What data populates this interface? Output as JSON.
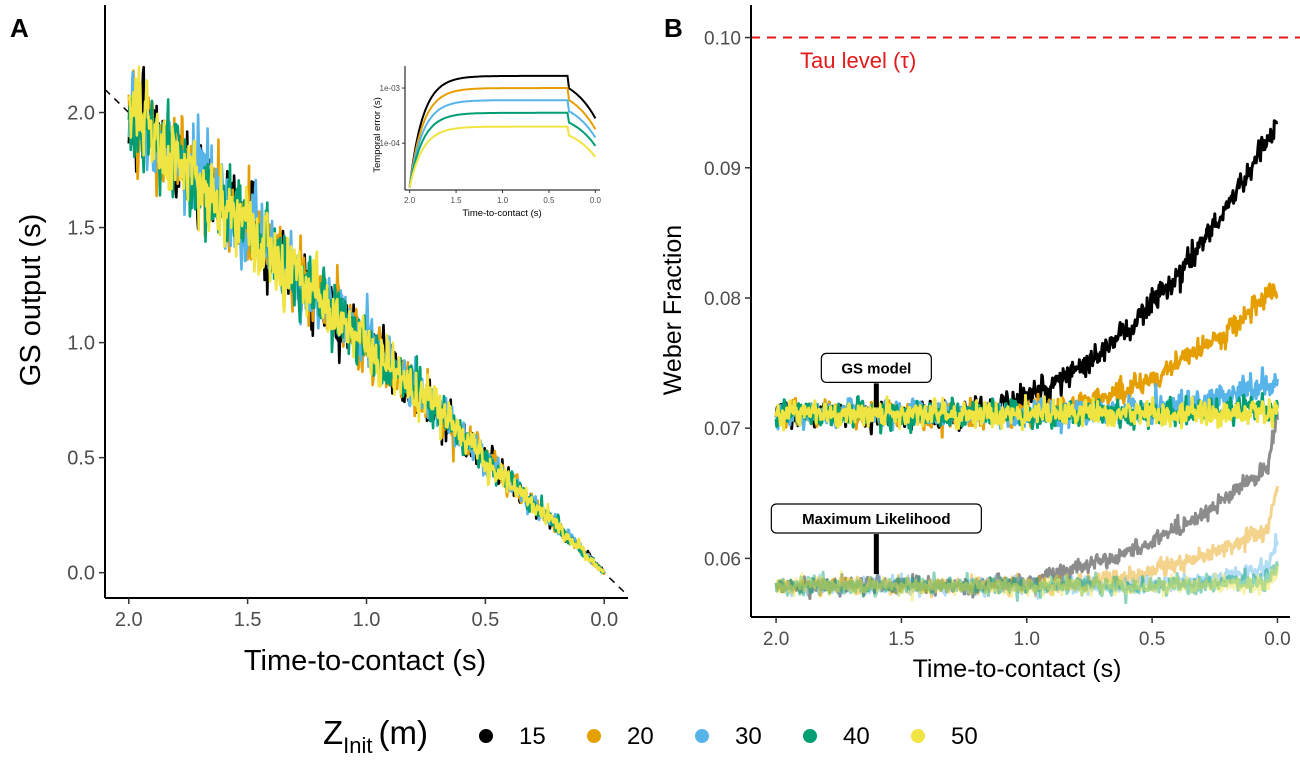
{
  "legend": {
    "title_main": "Z",
    "title_sub": "Init",
    "title_unit": "(m)",
    "entries": [
      {
        "label": "15",
        "color": "#000000"
      },
      {
        "label": "20",
        "color": "#E69F00"
      },
      {
        "label": "30",
        "color": "#56B4E9"
      },
      {
        "label": "40",
        "color": "#009E73"
      },
      {
        "label": "50",
        "color": "#F0E442"
      }
    ]
  },
  "chart_data": [
    {
      "panel": "A",
      "type": "line",
      "xlabel": "Time-to-contact (s)",
      "ylabel": "GS output (s)",
      "xlim": [
        2.1,
        -0.1
      ],
      "ylim": [
        -0.11,
        2.35
      ],
      "x_ticks": [
        {
          "v": 2.0,
          "l": "2.0"
        },
        {
          "v": 1.5,
          "l": "1.5"
        },
        {
          "v": 1.0,
          "l": "1.0"
        },
        {
          "v": 0.5,
          "l": "0.5"
        },
        {
          "v": 0.0,
          "l": "0.0"
        }
      ],
      "y_ticks": [
        {
          "v": 0.0,
          "l": "0.0"
        },
        {
          "v": 0.5,
          "l": "0.5"
        },
        {
          "v": 1.0,
          "l": "1.0"
        },
        {
          "v": 1.5,
          "l": "1.5"
        },
        {
          "v": 2.0,
          "l": "2.0"
        }
      ],
      "reference_line": {
        "style": "dashed",
        "from": [
          2.1,
          2.1
        ],
        "to": [
          -0.1,
          -0.1
        ]
      },
      "series": [
        {
          "name": "15",
          "x_start": 2.0,
          "x_end": 0.0,
          "mean_at_start": 2.0,
          "mean_at_end": 0.0,
          "noise_sd_start": 0.09,
          "noise_sd_end": 0.005
        },
        {
          "name": "20",
          "x_start": 2.0,
          "x_end": 0.0,
          "mean_at_start": 2.0,
          "mean_at_end": 0.0,
          "noise_sd_start": 0.09,
          "noise_sd_end": 0.005
        },
        {
          "name": "30",
          "x_start": 2.0,
          "x_end": 0.0,
          "mean_at_start": 2.0,
          "mean_at_end": 0.0,
          "noise_sd_start": 0.09,
          "noise_sd_end": 0.005
        },
        {
          "name": "40",
          "x_start": 2.0,
          "x_end": 0.0,
          "mean_at_start": 2.0,
          "mean_at_end": 0.0,
          "noise_sd_start": 0.09,
          "noise_sd_end": 0.005
        },
        {
          "name": "50",
          "x_start": 2.0,
          "x_end": 0.0,
          "mean_at_start": 2.0,
          "mean_at_end": 0.0,
          "noise_sd_start": 0.09,
          "noise_sd_end": 0.005
        }
      ],
      "inset": {
        "type": "line",
        "xlabel": "Time-to-contact (s)",
        "ylabel": "Temporal error (s)",
        "scale": "log10",
        "xlim": [
          2.05,
          -0.05
        ],
        "ylim_log10": [
          -4.85,
          -2.6
        ],
        "x_ticks": [
          {
            "v": 2.0,
            "l": "2.0"
          },
          {
            "v": 1.5,
            "l": "1.5"
          },
          {
            "v": 1.0,
            "l": "1.0"
          },
          {
            "v": 0.5,
            "l": "0.5"
          },
          {
            "v": 0.0,
            "l": "0.0"
          }
        ],
        "y_ticks": [
          {
            "v": -3,
            "l": "1e-03"
          },
          {
            "v": -4,
            "l": "1e-04"
          }
        ],
        "series": [
          {
            "name": "15",
            "log10_peak": -2.78,
            "log10_start": -4.8,
            "log10_end": -3.55
          },
          {
            "name": "20",
            "log10_peak": -3.0,
            "log10_start": -4.8,
            "log10_end": -3.75
          },
          {
            "name": "30",
            "log10_peak": -3.22,
            "log10_start": -4.8,
            "log10_end": -3.9
          },
          {
            "name": "40",
            "log10_peak": -3.45,
            "log10_start": -4.8,
            "log10_end": -4.05
          },
          {
            "name": "50",
            "log10_peak": -3.7,
            "log10_start": -4.8,
            "log10_end": -4.25
          }
        ]
      }
    },
    {
      "panel": "B",
      "type": "line",
      "xlabel": "Time-to-contact (s)",
      "ylabel": "Weber Fraction",
      "xlim": [
        2.1,
        -0.05
      ],
      "ylim": [
        0.0555,
        0.1025
      ],
      "x_ticks": [
        {
          "v": 2.0,
          "l": "2.0"
        },
        {
          "v": 1.5,
          "l": "1.5"
        },
        {
          "v": 1.0,
          "l": "1.0"
        },
        {
          "v": 0.5,
          "l": "0.5"
        },
        {
          "v": 0.0,
          "l": "0.0"
        }
      ],
      "y_ticks": [
        {
          "v": 0.06,
          "l": "0.06"
        },
        {
          "v": 0.07,
          "l": "0.07"
        },
        {
          "v": 0.08,
          "l": "0.08"
        },
        {
          "v": 0.09,
          "l": "0.09"
        },
        {
          "v": 0.1,
          "l": "0.10"
        }
      ],
      "reference_line": {
        "label": "Tau level (τ)",
        "y": 0.1,
        "style": "dashed",
        "color": "#e31a1c"
      },
      "annotations": [
        {
          "text": "GS model",
          "x": 1.6,
          "y": 0.0716
        },
        {
          "text": "Maximum Likelihood",
          "x": 1.6,
          "y": 0.0588
        }
      ],
      "groups": [
        {
          "name": "GS model",
          "opacity": 1.0,
          "series": [
            {
              "name": "15",
              "baseline": 0.0711,
              "end": 0.0935,
              "rise_start": 1.35,
              "noise": 0.00045
            },
            {
              "name": "20",
              "baseline": 0.0711,
              "end": 0.0808,
              "rise_start": 1.1,
              "noise": 0.00045
            },
            {
              "name": "30",
              "baseline": 0.0711,
              "end": 0.0737,
              "rise_start": 0.8,
              "noise": 0.00045
            },
            {
              "name": "40",
              "baseline": 0.0711,
              "end": 0.0718,
              "rise_start": 0.5,
              "noise": 0.00045
            },
            {
              "name": "50",
              "baseline": 0.0711,
              "end": 0.0712,
              "rise_start": 0.2,
              "noise": 0.00045
            }
          ]
        },
        {
          "name": "Maximum Likelihood",
          "opacity": 0.45,
          "series": [
            {
              "name": "15",
              "baseline": 0.0579,
              "end": 0.0675,
              "rise_start": 1.3,
              "noise": 0.0003,
              "end_spike": 0.0715
            },
            {
              "name": "20",
              "baseline": 0.0579,
              "end": 0.0628,
              "rise_start": 1.0,
              "noise": 0.0003,
              "end_spike": 0.0655
            },
            {
              "name": "30",
              "baseline": 0.0579,
              "end": 0.0595,
              "rise_start": 0.6,
              "noise": 0.0003,
              "end_spike": 0.0612
            },
            {
              "name": "40",
              "baseline": 0.0579,
              "end": 0.0585,
              "rise_start": 0.4,
              "noise": 0.0003,
              "end_spike": 0.0598
            },
            {
              "name": "50",
              "baseline": 0.0579,
              "end": 0.0581,
              "rise_start": 0.2,
              "noise": 0.0003,
              "end_spike": 0.0588
            }
          ]
        }
      ]
    }
  ]
}
